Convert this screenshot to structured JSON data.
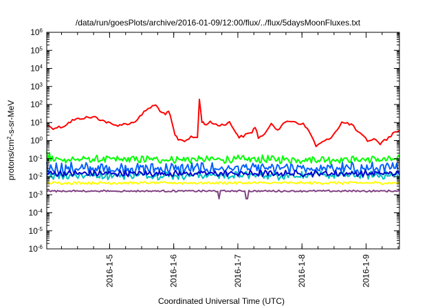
{
  "chart_data": {
    "type": "line",
    "title": "/data/run/goesPlots/archive/2016-01-09/12:00/flux/../flux/5daysMoonFluxes.txt",
    "xlabel": "Coordinated Universal Time (UTC)",
    "ylabel": {
      "prefix": "protons/cm",
      "sup": "2",
      "suffix": "-s-sr-MeV"
    },
    "xlim": [
      0,
      5.5
    ],
    "ylim_log10": [
      -6,
      6
    ],
    "y_scale": "log",
    "grid": false,
    "legend": "none",
    "x_ticks": [
      {
        "x": 0.98,
        "label": "2016-1-5"
      },
      {
        "x": 1.98,
        "label": "2016-1-6"
      },
      {
        "x": 2.98,
        "label": "2016-1-7"
      },
      {
        "x": 3.98,
        "label": "2016-1-8"
      },
      {
        "x": 4.98,
        "label": "2016-1-9"
      }
    ],
    "y_ticks": [
      {
        "exp": 6,
        "label": "10",
        "sup": "6"
      },
      {
        "exp": 5,
        "label": "10",
        "sup": "5"
      },
      {
        "exp": 4,
        "label": "10",
        "sup": "4"
      },
      {
        "exp": 3,
        "label": "10",
        "sup": "3"
      },
      {
        "exp": 2,
        "label": "10",
        "sup": "2"
      },
      {
        "exp": 1,
        "label": "10",
        "sup": "1"
      },
      {
        "exp": 0,
        "label": "10",
        "sup": "0"
      },
      {
        "exp": -1,
        "label": "10",
        "sup": "-1"
      },
      {
        "exp": -2,
        "label": "10",
        "sup": "-2"
      },
      {
        "exp": -3,
        "label": "10",
        "sup": "-3"
      },
      {
        "exp": -4,
        "label": "10",
        "sup": "-4"
      },
      {
        "exp": -5,
        "label": "10",
        "sup": "-5"
      },
      {
        "exp": -6,
        "label": "10",
        "sup": "-6"
      }
    ],
    "series": [
      {
        "color": "#ff0000",
        "x": [
          0.0,
          0.1,
          0.25,
          0.4,
          0.55,
          0.75,
          0.9,
          1.05,
          1.2,
          1.35,
          1.45,
          1.55,
          1.65,
          1.7,
          1.8,
          1.85,
          1.9,
          1.95,
          2.0,
          2.05,
          2.15,
          2.25,
          2.35,
          2.38,
          2.42,
          2.46,
          2.55,
          2.7,
          2.85,
          2.95,
          3.0,
          3.1,
          3.2,
          3.25,
          3.3,
          3.4,
          3.5,
          3.6,
          3.75,
          3.85,
          3.9,
          4.0,
          4.1,
          4.2,
          4.3,
          4.4,
          4.5,
          4.6,
          4.75,
          4.85,
          4.95,
          5.0,
          5.1,
          5.2,
          5.3,
          5.4,
          5.5
        ],
        "y": [
          7,
          5,
          6,
          13,
          18,
          20,
          12,
          7,
          8,
          10,
          20,
          50,
          80,
          90,
          35,
          25,
          45,
          10,
          2,
          1.2,
          1.0,
          1.5,
          1.5,
          180,
          12,
          8,
          10,
          7,
          10,
          3,
          1.5,
          2,
          3,
          6,
          1.5,
          2,
          10,
          4,
          12,
          12,
          10,
          8,
          3,
          0.5,
          0.8,
          1.2,
          3,
          10,
          8,
          3,
          1.5,
          1.0,
          1.2,
          0.7,
          1.2,
          2.5,
          3.5
        ]
      },
      {
        "color": "#00ff00",
        "base": 0.09,
        "amp": 0.35,
        "noise": 0.25,
        "x": [
          0,
          5.5
        ],
        "spikes": [
          [
            0.0,
            0.25
          ],
          [
            0.05,
            0.22
          ]
        ]
      },
      {
        "color": "#0060ff",
        "base": 0.028,
        "amp": 0.5,
        "noise": 0.45,
        "x": [
          0,
          5.5
        ],
        "spikes": []
      },
      {
        "color": "#00c0c0",
        "base": 0.012,
        "amp": 0.35,
        "noise": 0.3,
        "x": [
          0,
          5.5
        ],
        "spikes": []
      },
      {
        "color": "#0000cc",
        "base": 0.015,
        "amp": 0.25,
        "noise": 0.22,
        "x": [
          0,
          5.5
        ],
        "spikes": []
      },
      {
        "color": "#ffff00",
        "base": 0.0045,
        "amp": 0.12,
        "noise": 0.08,
        "x": [
          0,
          5.5
        ],
        "spikes": []
      },
      {
        "color": "#804080",
        "base": 0.0016,
        "amp": 0.08,
        "noise": 0.05,
        "x": [
          0,
          5.5
        ],
        "spikes": [
          [
            2.68,
            0.0006
          ],
          [
            3.12,
            0.0006
          ]
        ]
      }
    ]
  }
}
